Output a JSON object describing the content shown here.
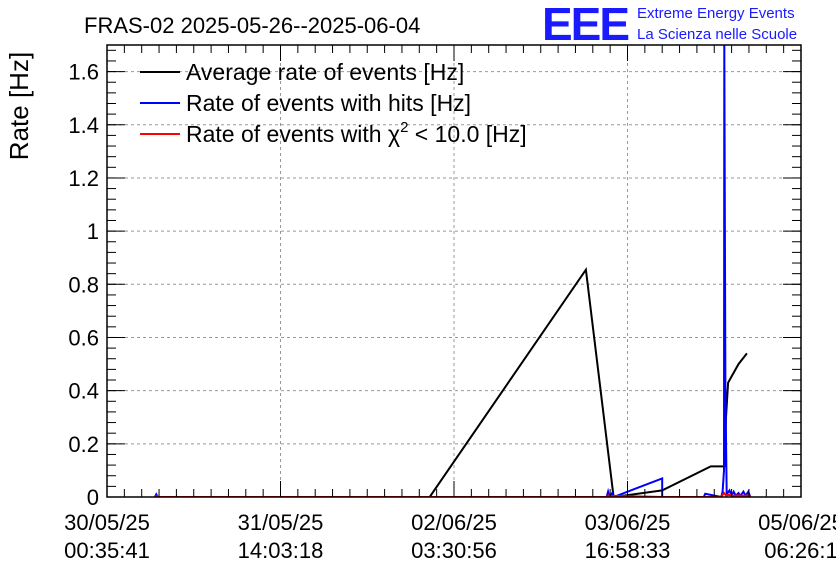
{
  "chart_data": {
    "type": "line",
    "title": "FRAS-02 2025-05-26--2025-06-04",
    "ylabel": "Rate [Hz]",
    "xlabel": "",
    "ylim": [
      0,
      1.7
    ],
    "xlim": [
      0,
      1
    ],
    "grid": true,
    "legend_position": "top-left",
    "y_ticks": [
      0,
      0.2,
      0.4,
      0.6,
      0.8,
      1,
      1.2,
      1.4,
      1.6
    ],
    "y_tick_labels": [
      "0",
      "0.2",
      "0.4",
      "0.6",
      "0.8",
      "1",
      "1.2",
      "1.4",
      "1.6"
    ],
    "x_ticks": [
      {
        "x": 0.0,
        "date": "30/05/25",
        "time": "00:35:41"
      },
      {
        "x": 0.25,
        "date": "31/05/25",
        "time": "14:03:18"
      },
      {
        "x": 0.5,
        "date": "02/06/25",
        "time": "03:30:56"
      },
      {
        "x": 0.75,
        "date": "03/06/25",
        "time": "16:58:33"
      },
      {
        "x": 1.0,
        "date": "05/06/25",
        "time": "06:26:1"
      }
    ],
    "series": [
      {
        "name": "Average rate of events [Hz]",
        "color": "#000000",
        "x": [
          0.069,
          0.465,
          0.69,
          0.73,
          0.8,
          0.87,
          0.89,
          0.892,
          0.895,
          0.91,
          0.922
        ],
        "y": [
          0,
          0,
          0.855,
          0,
          0.025,
          0.115,
          0.115,
          0.3,
          0.43,
          0.5,
          0.54
        ]
      },
      {
        "name": "Rate of events with hits [Hz]",
        "color": "#0000ff",
        "x": [
          0.069,
          0.071,
          0.073,
          0.72,
          0.722,
          0.724,
          0.728,
          0.73,
          0.8,
          0.8,
          0.86,
          0.862,
          0.885,
          0.887,
          0.889,
          0.8895,
          0.891,
          0.893,
          0.897,
          0.9,
          0.903,
          0.906,
          0.91,
          0.913,
          0.917,
          0.92,
          0.924,
          0.927
        ],
        "y": [
          0,
          0.01,
          0,
          0,
          0.02,
          0,
          0.015,
          0,
          0.07,
          0,
          0,
          0.012,
          0,
          0.02,
          0.1,
          1.72,
          0.4,
          0.01,
          0.025,
          0.005,
          0.02,
          0.005,
          0.015,
          0.005,
          0.02,
          0.005,
          0.02,
          0
        ]
      },
      {
        "name": "Rate of events with χ² < 10.0 [Hz]",
        "color": "#ff0000",
        "x": [
          0.069,
          0.072,
          0.074,
          0.72,
          0.723,
          0.726,
          0.73,
          0.8,
          0.885,
          0.887,
          0.889,
          0.892,
          0.897,
          0.903,
          0.91,
          0.917,
          0.924,
          0.927
        ],
        "y": [
          0,
          0.004,
          0,
          0,
          0.006,
          0,
          0.004,
          0,
          0,
          0.008,
          0.015,
          0.006,
          0.008,
          0.004,
          0.006,
          0.004,
          0.006,
          0
        ]
      }
    ]
  },
  "logo": {
    "text": "EEE",
    "line1": "Extreme Energy Events",
    "line2": "La Scienza nelle Scuole"
  },
  "legend": {
    "items": [
      {
        "text": "Average rate of events [Hz]"
      },
      {
        "text": "Rate of events with hits [Hz]"
      },
      {
        "prefix": "Rate of events with ",
        "chi": "χ",
        "sup": "2",
        "suffix": " < 10.0 [Hz]"
      }
    ]
  }
}
